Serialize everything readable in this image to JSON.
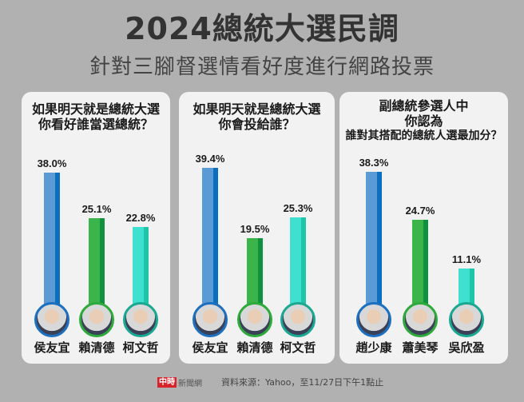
{
  "header": {
    "title": "2024總統大選民調",
    "subtitle": "針對三腳督選情看好度進行網路投票"
  },
  "panels": [
    {
      "title_lines": [
        "如果明天就是總統大選",
        "你看好誰當選總統？"
      ],
      "candidates": [
        {
          "name": "侯友宜",
          "value": 38.0,
          "label": "38.0%",
          "color": "#5b9bd5",
          "shade": "#0b6fbf",
          "ring": "#1d6fbf"
        },
        {
          "name": "賴清德",
          "value": 25.1,
          "label": "25.1%",
          "color": "#3bb44a",
          "shade": "#0f9140",
          "ring": "#2eaa3c"
        },
        {
          "name": "柯文哲",
          "value": 22.8,
          "label": "22.8%",
          "color": "#40e0d0",
          "shade": "#1fc5a8",
          "ring": "#1aa892"
        }
      ]
    },
    {
      "title_lines": [
        "如果明天就是總統大選",
        "你會投給誰？"
      ],
      "candidates": [
        {
          "name": "侯友宜",
          "value": 39.4,
          "label": "39.4%",
          "color": "#5b9bd5",
          "shade": "#0b6fbf",
          "ring": "#1d6fbf"
        },
        {
          "name": "賴清德",
          "value": 19.5,
          "label": "19.5%",
          "color": "#3bb44a",
          "shade": "#0f9140",
          "ring": "#2eaa3c"
        },
        {
          "name": "柯文哲",
          "value": 25.3,
          "label": "25.3%",
          "color": "#40e0d0",
          "shade": "#1fc5a8",
          "ring": "#1aa892"
        }
      ]
    },
    {
      "title_lines": [
        "副總統參選人中",
        "你認為",
        "誰對其搭配的總統人選最加分？"
      ],
      "candidates": [
        {
          "name": "趙少康",
          "value": 38.3,
          "label": "38.3%",
          "color": "#5b9bd5",
          "shade": "#0b6fbf",
          "ring": "#1d6fbf"
        },
        {
          "name": "蕭美琴",
          "value": 24.7,
          "label": "24.7%",
          "color": "#3bb44a",
          "shade": "#0f9140",
          "ring": "#2eaa3c"
        },
        {
          "name": "吳欣盈",
          "value": 11.1,
          "label": "11.1%",
          "color": "#40e0d0",
          "shade": "#1fc5a8",
          "ring": "#1aa892"
        }
      ]
    }
  ],
  "footer": {
    "logo_badge": "中時",
    "logo_text": "新聞網",
    "source": "資料來源：Yahoo，至11/27日下午1點止"
  },
  "chart_data": [
    {
      "type": "bar",
      "title": "如果明天就是總統大選 你看好誰當選總統？",
      "categories": [
        "侯友宜",
        "賴清德",
        "柯文哲"
      ],
      "values": [
        38.0,
        25.1,
        22.8
      ],
      "ylabel": "%",
      "xlabel": ""
    },
    {
      "type": "bar",
      "title": "如果明天就是總統大選 你會投給誰？",
      "categories": [
        "侯友宜",
        "賴清德",
        "柯文哲"
      ],
      "values": [
        39.4,
        19.5,
        25.3
      ],
      "ylabel": "%",
      "xlabel": ""
    },
    {
      "type": "bar",
      "title": "副總統參選人中 你認為 誰對其搭配的總統人選最加分？",
      "categories": [
        "趙少康",
        "蕭美琴",
        "吳欣盈"
      ],
      "values": [
        38.3,
        24.7,
        11.1
      ],
      "ylabel": "%",
      "xlabel": ""
    }
  ]
}
